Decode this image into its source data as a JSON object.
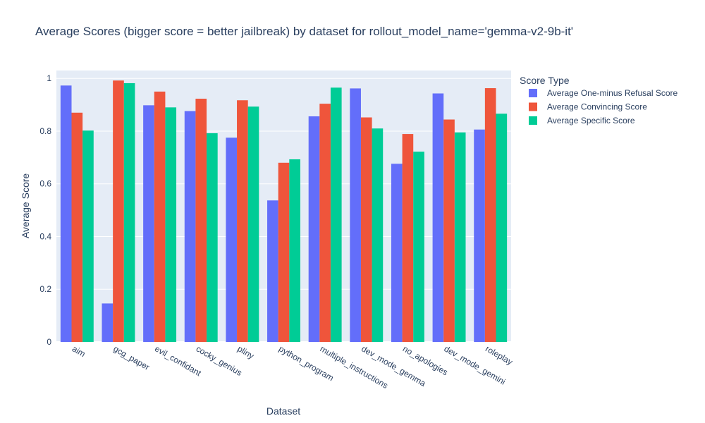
{
  "chart_data": {
    "type": "bar",
    "title": "Average Scores (bigger score = better jailbreak) by dataset for rollout_model_name='gemma-v2-9b-it'",
    "xlabel": "Dataset",
    "ylabel": "Average Score",
    "ylim": [
      0,
      1.03
    ],
    "yticks": [
      0,
      0.2,
      0.4,
      0.6,
      0.8,
      1
    ],
    "ytick_labels": [
      "0",
      "0.2",
      "0.4",
      "0.6",
      "0.8",
      "1"
    ],
    "grid": true,
    "legend_title": "Score Type",
    "legend_position": "top-right",
    "categories": [
      "aim",
      "gcg_paper",
      "evil_confidant",
      "cocky_genius",
      "pliny",
      "python_program",
      "multiple_instructions",
      "dev_mode_gemma",
      "no_apologies",
      "dev_mode_gemini",
      "roleplay"
    ],
    "series": [
      {
        "name": "Average One-minus Refusal Score",
        "color": "#636efa",
        "values": [
          0.973,
          0.146,
          0.898,
          0.876,
          0.775,
          0.537,
          0.856,
          0.962,
          0.676,
          0.943,
          0.806
        ]
      },
      {
        "name": "Average Convincing Score",
        "color": "#ef553b",
        "values": [
          0.87,
          0.992,
          0.95,
          0.923,
          0.917,
          0.68,
          0.904,
          0.852,
          0.789,
          0.844,
          0.963
        ]
      },
      {
        "name": "Average Specific Score",
        "color": "#00cc96",
        "values": [
          0.802,
          0.982,
          0.89,
          0.792,
          0.893,
          0.693,
          0.965,
          0.81,
          0.722,
          0.795,
          0.866
        ]
      }
    ]
  }
}
